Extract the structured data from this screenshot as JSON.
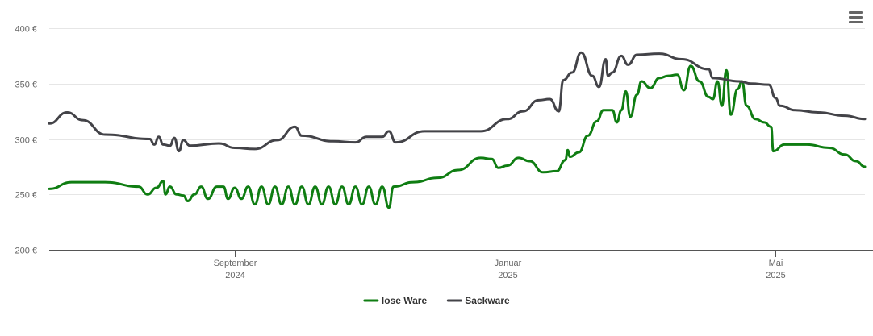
{
  "chart_data": {
    "type": "line",
    "title": "",
    "xlabel": "",
    "ylabel": "",
    "y_unit": "€",
    "ylim": [
      200,
      400
    ],
    "y_ticks": [
      {
        "value": 200,
        "label": "200 €"
      },
      {
        "value": 250,
        "label": "250 €"
      },
      {
        "value": 300,
        "label": "300 €"
      },
      {
        "value": 350,
        "label": "350 €"
      },
      {
        "value": 400,
        "label": "400 €"
      }
    ],
    "xlim": [
      "2024-06-10",
      "2025-06-10"
    ],
    "x_ticks": [
      {
        "date": "2024-09-01",
        "label": "September",
        "sublabel": "2024"
      },
      {
        "date": "2025-01-01",
        "label": "Januar",
        "sublabel": "2025"
      },
      {
        "date": "2025-05-01",
        "label": "Mai",
        "sublabel": "2025"
      }
    ],
    "grid": true,
    "legend_position": "bottom-center",
    "series": [
      {
        "name": "lose Ware",
        "color": "#0f7d12",
        "points": [
          [
            "2024-06-10",
            255
          ],
          [
            "2024-06-20",
            261
          ],
          [
            "2024-07-05",
            261
          ],
          [
            "2024-07-20",
            257
          ],
          [
            "2024-07-24",
            250
          ],
          [
            "2024-07-28",
            256
          ],
          [
            "2024-07-31",
            262
          ],
          [
            "2024-08-01",
            250
          ],
          [
            "2024-08-03",
            257
          ],
          [
            "2024-08-06",
            250
          ],
          [
            "2024-08-09",
            249
          ],
          [
            "2024-08-11",
            244
          ],
          [
            "2024-08-14",
            250
          ],
          [
            "2024-08-17",
            257
          ],
          [
            "2024-08-20",
            246
          ],
          [
            "2024-08-24",
            257
          ],
          [
            "2024-08-27",
            257
          ],
          [
            "2024-08-29",
            246
          ],
          [
            "2024-09-01",
            256
          ],
          [
            "2024-09-04",
            246
          ],
          [
            "2024-09-07",
            257
          ],
          [
            "2024-09-10",
            241
          ],
          [
            "2024-09-13",
            257
          ],
          [
            "2024-09-16",
            241
          ],
          [
            "2024-09-19",
            257
          ],
          [
            "2024-09-22",
            241
          ],
          [
            "2024-09-25",
            257
          ],
          [
            "2024-09-28",
            241
          ],
          [
            "2024-10-01",
            257
          ],
          [
            "2024-10-04",
            241
          ],
          [
            "2024-10-07",
            257
          ],
          [
            "2024-10-10",
            241
          ],
          [
            "2024-10-13",
            257
          ],
          [
            "2024-10-16",
            241
          ],
          [
            "2024-10-19",
            257
          ],
          [
            "2024-10-22",
            241
          ],
          [
            "2024-10-25",
            257
          ],
          [
            "2024-10-28",
            241
          ],
          [
            "2024-10-31",
            257
          ],
          [
            "2024-11-03",
            241
          ],
          [
            "2024-11-06",
            257
          ],
          [
            "2024-11-09",
            238
          ],
          [
            "2024-11-11",
            257
          ],
          [
            "2024-11-20",
            261
          ],
          [
            "2024-12-01",
            265
          ],
          [
            "2024-12-10",
            272
          ],
          [
            "2024-12-20",
            283
          ],
          [
            "2024-12-25",
            282
          ],
          [
            "2024-12-28",
            274
          ],
          [
            "2025-01-01",
            276
          ],
          [
            "2025-01-06",
            283
          ],
          [
            "2025-01-11",
            280
          ],
          [
            "2025-01-17",
            270
          ],
          [
            "2025-01-23",
            271
          ],
          [
            "2025-01-27",
            281
          ],
          [
            "2025-01-28",
            290
          ],
          [
            "2025-01-29",
            284
          ],
          [
            "2025-02-02",
            288
          ],
          [
            "2025-02-06",
            303
          ],
          [
            "2025-02-10",
            316
          ],
          [
            "2025-02-13",
            326
          ],
          [
            "2025-02-17",
            326
          ],
          [
            "2025-02-19",
            315
          ],
          [
            "2025-02-21",
            326
          ],
          [
            "2025-02-23",
            343
          ],
          [
            "2025-02-25",
            320
          ],
          [
            "2025-02-28",
            340
          ],
          [
            "2025-03-02",
            352
          ],
          [
            "2025-03-06",
            346
          ],
          [
            "2025-03-10",
            355
          ],
          [
            "2025-03-14",
            357
          ],
          [
            "2025-03-18",
            358
          ],
          [
            "2025-03-21",
            344
          ],
          [
            "2025-03-24",
            366
          ],
          [
            "2025-03-28",
            352
          ],
          [
            "2025-04-01",
            338
          ],
          [
            "2025-04-03",
            336
          ],
          [
            "2025-04-05",
            352
          ],
          [
            "2025-04-07",
            330
          ],
          [
            "2025-04-09",
            362
          ],
          [
            "2025-04-11",
            322
          ],
          [
            "2025-04-14",
            345
          ],
          [
            "2025-04-16",
            352
          ],
          [
            "2025-04-18",
            330
          ],
          [
            "2025-04-22",
            318
          ],
          [
            "2025-04-26",
            315
          ],
          [
            "2025-04-29",
            311
          ],
          [
            "2025-04-30",
            289
          ],
          [
            "2025-05-05",
            295
          ],
          [
            "2025-05-15",
            295
          ],
          [
            "2025-05-25",
            292
          ],
          [
            "2025-06-01",
            286
          ],
          [
            "2025-06-06",
            280
          ],
          [
            "2025-06-10",
            275
          ]
        ]
      },
      {
        "name": "Sackware",
        "color": "#434348",
        "points": [
          [
            "2024-06-10",
            314
          ],
          [
            "2024-06-18",
            324
          ],
          [
            "2024-06-25",
            317
          ],
          [
            "2024-07-05",
            304
          ],
          [
            "2024-07-25",
            300
          ],
          [
            "2024-07-27",
            295
          ],
          [
            "2024-07-29",
            302
          ],
          [
            "2024-07-31",
            295
          ],
          [
            "2024-08-03",
            294
          ],
          [
            "2024-08-05",
            301
          ],
          [
            "2024-08-07",
            289
          ],
          [
            "2024-08-09",
            299
          ],
          [
            "2024-08-12",
            294
          ],
          [
            "2024-08-25",
            296
          ],
          [
            "2024-09-01",
            292
          ],
          [
            "2024-09-10",
            291
          ],
          [
            "2024-09-20",
            299
          ],
          [
            "2024-09-28",
            311
          ],
          [
            "2024-10-01",
            303
          ],
          [
            "2024-10-15",
            298
          ],
          [
            "2024-10-25",
            297
          ],
          [
            "2024-10-30",
            302
          ],
          [
            "2024-11-06",
            302
          ],
          [
            "2024-11-09",
            307
          ],
          [
            "2024-11-12",
            297
          ],
          [
            "2024-11-25",
            307
          ],
          [
            "2024-12-10",
            307
          ],
          [
            "2024-12-20",
            307
          ],
          [
            "2025-01-01",
            318
          ],
          [
            "2025-01-08",
            325
          ],
          [
            "2025-01-15",
            335
          ],
          [
            "2025-01-20",
            336
          ],
          [
            "2025-01-24",
            325
          ],
          [
            "2025-01-26",
            353
          ],
          [
            "2025-01-30",
            360
          ],
          [
            "2025-02-03",
            378
          ],
          [
            "2025-02-08",
            357
          ],
          [
            "2025-02-11",
            347
          ],
          [
            "2025-02-14",
            372
          ],
          [
            "2025-02-15",
            357
          ],
          [
            "2025-02-17",
            360
          ],
          [
            "2025-02-21",
            375
          ],
          [
            "2025-02-24",
            367
          ],
          [
            "2025-02-28",
            376
          ],
          [
            "2025-03-10",
            377
          ],
          [
            "2025-03-20",
            372
          ],
          [
            "2025-04-01",
            363
          ],
          [
            "2025-04-03",
            355
          ],
          [
            "2025-04-15",
            352
          ],
          [
            "2025-04-20",
            350
          ],
          [
            "2025-04-28",
            349
          ],
          [
            "2025-05-01",
            337
          ],
          [
            "2025-05-03",
            330
          ],
          [
            "2025-05-10",
            326
          ],
          [
            "2025-05-20",
            324
          ],
          [
            "2025-06-01",
            321
          ],
          [
            "2025-06-10",
            318
          ]
        ]
      }
    ]
  }
}
